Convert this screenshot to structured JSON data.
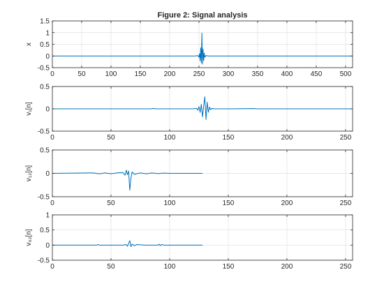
{
  "figure": {
    "title": "Figure 2: Signal analysis"
  },
  "colors": {
    "line": "#0072BD",
    "grid": "#dfdfdf",
    "axis": "#262626",
    "background": "#ffffff"
  },
  "chart_data": [
    {
      "type": "line",
      "title": "Figure 2: Signal analysis",
      "ylabel": "x",
      "xlim": [
        0,
        512
      ],
      "ylim": [
        -0.5,
        1.5
      ],
      "xticks": [
        0,
        50,
        100,
        150,
        200,
        250,
        300,
        350,
        400,
        450,
        500
      ],
      "yticks": [
        -0.5,
        0,
        0.5,
        1,
        1.5
      ],
      "xtick_labels": [
        "0",
        "50",
        "100",
        "150",
        "200",
        "250",
        "300",
        "350",
        "400",
        "450",
        "500"
      ],
      "ytick_labels": [
        "-0.5",
        "0",
        "0.5",
        "1",
        "1.5"
      ],
      "grid": true,
      "series": [
        {
          "x": [
            0,
            244,
            248,
            250,
            251,
            252,
            253,
            254,
            255,
            256,
            257,
            258,
            259,
            260,
            262,
            266,
            512
          ],
          "values": [
            0,
            0,
            0.02,
            -0.05,
            0.1,
            -0.2,
            0.35,
            -0.3,
            0.98,
            -0.35,
            0.3,
            -0.2,
            0.12,
            -0.05,
            0.02,
            0,
            0
          ]
        }
      ]
    },
    {
      "type": "line",
      "ylabel": "v₁[n]",
      "xlim": [
        0,
        256
      ],
      "ylim": [
        -0.5,
        0.5
      ],
      "xticks": [
        0,
        50,
        100,
        150,
        200,
        250
      ],
      "yticks": [
        -0.5,
        0,
        0.5
      ],
      "xtick_labels": [
        "0",
        "50",
        "100",
        "150",
        "200",
        "250"
      ],
      "ytick_labels": [
        "-0.5",
        "0",
        "0.5"
      ],
      "grid": true,
      "series": [
        {
          "x": [
            0,
            84,
            86,
            88,
            120,
            123,
            124,
            125,
            126,
            127,
            128,
            129,
            130,
            131,
            132,
            133,
            134,
            135,
            136,
            138,
            150,
            172,
            174,
            256
          ],
          "values": [
            0,
            0,
            0.01,
            0,
            0,
            0.01,
            -0.03,
            0.05,
            -0.08,
            0.1,
            -0.18,
            0.06,
            0.27,
            -0.24,
            0.15,
            -0.08,
            0.04,
            -0.02,
            0.01,
            0,
            0,
            0.005,
            0,
            0
          ]
        }
      ]
    },
    {
      "type": "line",
      "ylabel": "v₁₂[n]",
      "xlim": [
        0,
        256
      ],
      "ylim": [
        -0.5,
        0.5
      ],
      "xticks": [
        0,
        50,
        100,
        150,
        200,
        250
      ],
      "yticks": [
        -0.5,
        0,
        0.5
      ],
      "xtick_labels": [
        "0",
        "50",
        "100",
        "150",
        "200",
        "250"
      ],
      "ytick_labels": [
        "-0.5",
        "0",
        "0.5"
      ],
      "grid": true,
      "series": [
        {
          "x": [
            0,
            35,
            40,
            45,
            50,
            55,
            60,
            62,
            63,
            64,
            65,
            66,
            67,
            68,
            70,
            75,
            80,
            85,
            90,
            95,
            100,
            128
          ],
          "values": [
            0,
            0.01,
            -0.01,
            0.01,
            -0.01,
            0.01,
            0.02,
            -0.04,
            0.07,
            -0.03,
            0.05,
            -0.36,
            -0.1,
            0.03,
            -0.02,
            0.01,
            -0.01,
            0.01,
            -0.005,
            0.005,
            0,
            0
          ]
        }
      ]
    },
    {
      "type": "line",
      "ylabel": "v₀₂[n]",
      "xlim": [
        0,
        256
      ],
      "ylim": [
        -0.5,
        1
      ],
      "xticks": [
        0,
        50,
        100,
        150,
        200,
        250
      ],
      "yticks": [
        -0.5,
        0,
        0.5,
        1
      ],
      "xtick_labels": [
        "0",
        "50",
        "100",
        "150",
        "200",
        "250"
      ],
      "ytick_labels": [
        "-0.5",
        "0",
        "0.5",
        "1"
      ],
      "grid": true,
      "series": [
        {
          "x": [
            0,
            38,
            39,
            40,
            60,
            63,
            64,
            65,
            66,
            67,
            68,
            70,
            72,
            75,
            78,
            90,
            91,
            92,
            93,
            95,
            128
          ],
          "values": [
            0,
            0,
            0.02,
            0,
            0,
            0.02,
            -0.04,
            0.05,
            0.15,
            -0.05,
            0.03,
            -0.02,
            0.02,
            0.01,
            0,
            0,
            0.03,
            -0.02,
            0.02,
            0,
            0
          ]
        }
      ]
    }
  ]
}
